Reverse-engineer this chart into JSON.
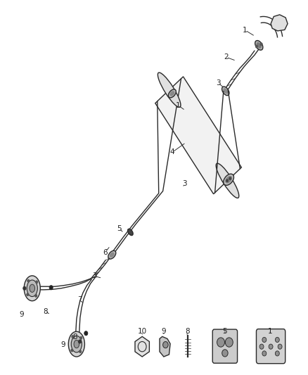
{
  "bg_color": "#ffffff",
  "line_color": "#2a2a2a",
  "label_color": "#222222",
  "fig_width": 4.38,
  "fig_height": 5.33,
  "dpi": 100
}
